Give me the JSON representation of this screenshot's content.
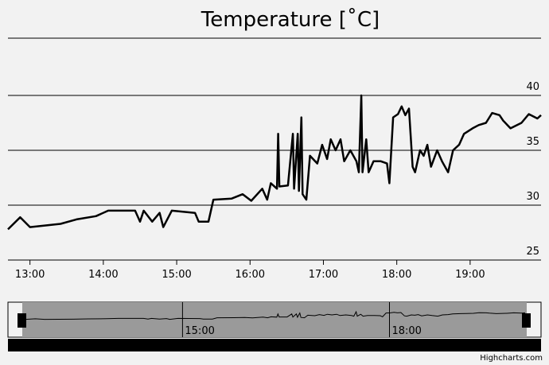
{
  "chart_data": {
    "type": "line",
    "title": "Temperature [˚C]",
    "x": [
      "12:42",
      "12:52",
      "13:00",
      "13:25",
      "13:38",
      "13:54",
      "14:04",
      "14:26",
      "14:30",
      "14:33",
      "14:40",
      "14:46",
      "14:49",
      "14:56",
      "15:15",
      "15:18",
      "15:26",
      "15:30",
      "15:45",
      "15:54",
      "16:01",
      "16:10",
      "16:14",
      "16:17",
      "16:22",
      "16:23",
      "16:24",
      "16:31",
      "16:35",
      "16:36",
      "16:39",
      "16:40",
      "16:42",
      "16:43",
      "16:46",
      "16:49",
      "16:55",
      "16:59",
      "17:03",
      "17:06",
      "17:10",
      "17:14",
      "17:17",
      "17:22",
      "17:27",
      "17:29",
      "17:31",
      "17:32",
      "17:35",
      "17:37",
      "17:41",
      "17:47",
      "17:52",
      "17:54",
      "17:57",
      "18:01",
      "18:04",
      "18:07",
      "18:10",
      "18:13",
      "18:15",
      "18:19",
      "18:22",
      "18:25",
      "18:28",
      "18:33",
      "18:37",
      "18:42",
      "18:46",
      "18:51",
      "18:55",
      "19:02",
      "19:07",
      "19:13",
      "19:18",
      "19:24",
      "19:27",
      "19:33",
      "19:42",
      "19:48",
      "19:55",
      "19:58"
    ],
    "values": [
      27.8,
      28.9,
      28.0,
      28.3,
      28.7,
      29.0,
      29.5,
      29.5,
      28.5,
      29.5,
      28.5,
      29.3,
      28.0,
      29.5,
      29.3,
      28.5,
      28.5,
      30.5,
      30.6,
      31.0,
      30.4,
      31.5,
      30.5,
      32.0,
      31.5,
      36.5,
      31.7,
      31.8,
      36.5,
      31.5,
      36.5,
      31.3,
      38.0,
      31.0,
      30.5,
      34.5,
      33.8,
      35.5,
      34.2,
      36.0,
      35.0,
      36.0,
      34.0,
      35.0,
      34.0,
      33.0,
      40.0,
      33.0,
      36.0,
      33.0,
      34.0,
      34.0,
      33.8,
      32.0,
      38.0,
      38.3,
      39.0,
      38.2,
      38.8,
      33.5,
      33.0,
      35.0,
      34.5,
      35.5,
      33.5,
      35.0,
      34.0,
      33.0,
      35.0,
      35.5,
      36.5,
      37.0,
      37.3,
      37.5,
      38.4,
      38.2,
      37.7,
      37.0,
      37.5,
      38.3,
      37.9,
      38.2
    ],
    "color": "#000000",
    "xlim": [
      "12:42",
      "19:58"
    ],
    "xticks": [
      "13:00",
      "14:00",
      "15:00",
      "16:00",
      "17:00",
      "18:00",
      "19:00"
    ],
    "ylim": [
      25,
      45
    ],
    "yticks": [
      25,
      30,
      35,
      40
    ],
    "grid": true,
    "navigator": {
      "ticks": [
        "15:00",
        "18:00"
      ]
    },
    "credits": "Highcharts.com"
  }
}
